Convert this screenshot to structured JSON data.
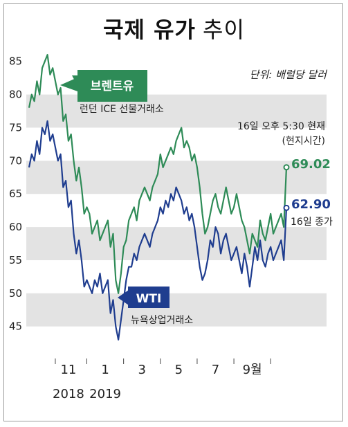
{
  "title": {
    "bold": "국제 유가",
    "light": "추이"
  },
  "unit_note": "단위: 배럴당 달러",
  "time_note": [
    "16일 오후 5:30 현재",
    "(현지시간)"
  ],
  "colors": {
    "brent": "#2e8b57",
    "wti": "#1f3d8f",
    "band": "#e3e3e3",
    "text": "#222222"
  },
  "series_labels": {
    "brent": {
      "name": "브렌트유",
      "exchange": "런던 ICE 선물거래소",
      "last": "69.02"
    },
    "wti": {
      "name": "WTI",
      "exchange": "뉴욕상업거래소",
      "last": "62.90",
      "note": "16일 종가"
    }
  },
  "chart_data": {
    "type": "line",
    "ylim": [
      41,
      88
    ],
    "yticks": [
      "85",
      "80",
      "75",
      "70",
      "65",
      "60",
      "55",
      "50",
      "45"
    ],
    "xtick_labels": [
      "11",
      "1",
      "3",
      "5",
      "7",
      "9월"
    ],
    "year_labels": [
      "2018",
      "2019"
    ],
    "series": [
      {
        "name": "브렌트유",
        "values": [
          78,
          80,
          79,
          82,
          80,
          84,
          85,
          86,
          83,
          84,
          82,
          80,
          81,
          76,
          77,
          73,
          74,
          70,
          67,
          69,
          66,
          62,
          63,
          62,
          59,
          60,
          61,
          58,
          59,
          60,
          61,
          57,
          59,
          52,
          50,
          53,
          57,
          58,
          61,
          62,
          63,
          61,
          64,
          65,
          66,
          65,
          64,
          66,
          67,
          68,
          71,
          69,
          70,
          71,
          72,
          71,
          73,
          74,
          75,
          72,
          73,
          72,
          70,
          71,
          69,
          66,
          62,
          59,
          60,
          62,
          64,
          65,
          63,
          62,
          64,
          66,
          64,
          62,
          63,
          65,
          63,
          61,
          60,
          58,
          56,
          59,
          58,
          57,
          61,
          59,
          58,
          60,
          62,
          59,
          60,
          61,
          62,
          60,
          69.02
        ]
      },
      {
        "name": "WTI",
        "values": [
          69,
          71,
          70,
          73,
          71,
          75,
          74,
          76,
          73,
          74,
          72,
          70,
          71,
          66,
          67,
          63,
          64,
          59,
          56,
          58,
          55,
          51,
          52,
          51,
          50,
          52,
          51,
          53,
          50,
          51,
          52,
          47,
          49,
          45,
          43,
          46,
          49,
          52,
          54,
          54,
          56,
          55,
          57,
          58,
          59,
          58,
          57,
          59,
          60,
          61,
          63,
          62,
          64,
          63,
          65,
          64,
          66,
          65,
          64,
          62,
          63,
          61,
          62,
          60,
          57,
          54,
          52,
          53,
          55,
          58,
          57,
          60,
          59,
          56,
          58,
          59,
          57,
          55,
          56,
          57,
          55,
          53,
          56,
          54,
          51,
          54,
          57,
          55,
          58,
          55,
          54,
          56,
          57,
          55,
          56,
          57,
          58,
          55,
          62.9
        ]
      }
    ]
  }
}
